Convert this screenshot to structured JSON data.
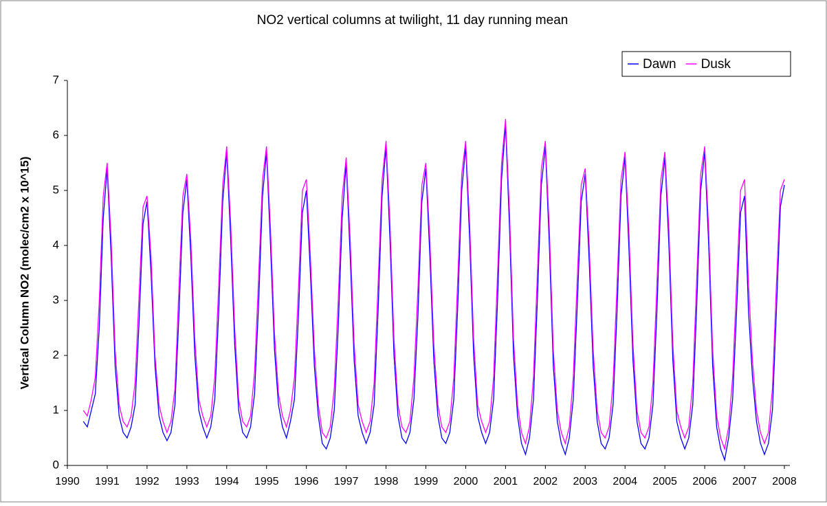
{
  "chart_data": {
    "type": "line",
    "title": "NO2 vertical columns at twilight, 11 day running mean",
    "y_label": "Vertical Column NO2 (molec/cm2 x 10^15)",
    "legend": "top-right",
    "x": [
      1990.4,
      1990.5,
      1990.6,
      1990.7,
      1990.8,
      1990.9,
      1991.0,
      1991.1,
      1991.2,
      1991.3,
      1991.4,
      1991.5,
      1991.6,
      1991.7,
      1991.8,
      1991.9,
      1992.0,
      1992.1,
      1992.2,
      1992.3,
      1992.4,
      1992.5,
      1992.6,
      1992.7,
      1992.8,
      1992.9,
      1993.0,
      1993.1,
      1993.2,
      1993.3,
      1993.4,
      1993.5,
      1993.6,
      1993.7,
      1993.8,
      1993.9,
      1994.0,
      1994.1,
      1994.2,
      1994.3,
      1994.4,
      1994.5,
      1994.6,
      1994.7,
      1994.8,
      1994.9,
      1995.0,
      1995.1,
      1995.2,
      1995.3,
      1995.4,
      1995.5,
      1995.6,
      1995.7,
      1995.8,
      1995.9,
      1996.0,
      1996.1,
      1996.2,
      1996.3,
      1996.4,
      1996.5,
      1996.6,
      1996.7,
      1996.8,
      1996.9,
      1997.0,
      1997.1,
      1997.2,
      1997.3,
      1997.4,
      1997.5,
      1997.6,
      1997.7,
      1997.8,
      1997.9,
      1998.0,
      1998.1,
      1998.2,
      1998.3,
      1998.4,
      1998.5,
      1998.6,
      1998.7,
      1998.8,
      1998.9,
      1999.0,
      1999.1,
      1999.2,
      1999.3,
      1999.4,
      1999.5,
      1999.6,
      1999.7,
      1999.8,
      1999.9,
      2000.0,
      2000.1,
      2000.2,
      2000.3,
      2000.4,
      2000.5,
      2000.6,
      2000.7,
      2000.8,
      2000.9,
      2001.0,
      2001.1,
      2001.2,
      2001.3,
      2001.4,
      2001.5,
      2001.6,
      2001.7,
      2001.8,
      2001.9,
      2002.0,
      2002.1,
      2002.2,
      2002.3,
      2002.4,
      2002.5,
      2002.6,
      2002.7,
      2002.8,
      2002.9,
      2003.0,
      2003.1,
      2003.2,
      2003.3,
      2003.4,
      2003.5,
      2003.6,
      2003.7,
      2003.8,
      2003.9,
      2004.0,
      2004.1,
      2004.2,
      2004.3,
      2004.4,
      2004.5,
      2004.6,
      2004.7,
      2004.8,
      2004.9,
      2005.0,
      2005.1,
      2005.2,
      2005.3,
      2005.4,
      2005.5,
      2005.6,
      2005.7,
      2005.8,
      2005.9,
      2006.0,
      2006.1,
      2006.2,
      2006.3,
      2006.4,
      2006.5,
      2006.6,
      2006.7,
      2006.8,
      2006.9,
      2007.0,
      2007.1,
      2007.2,
      2007.3,
      2007.4,
      2007.5,
      2007.6,
      2007.7,
      2007.8,
      2007.9,
      2008.0
    ],
    "series": [
      {
        "name": "Dawn",
        "color": "#0000ff",
        "values": [
          0.8,
          0.7,
          1.0,
          1.3,
          2.5,
          4.5,
          5.4,
          3.8,
          1.8,
          0.9,
          0.6,
          0.5,
          0.7,
          1.1,
          2.6,
          4.4,
          4.8,
          3.5,
          1.8,
          0.9,
          0.6,
          0.45,
          0.6,
          1.1,
          2.7,
          4.6,
          5.2,
          3.8,
          2.0,
          1.0,
          0.7,
          0.5,
          0.7,
          1.2,
          2.8,
          4.8,
          5.7,
          4.1,
          2.2,
          1.0,
          0.6,
          0.5,
          0.7,
          1.3,
          2.9,
          4.9,
          5.7,
          4.0,
          2.1,
          1.1,
          0.7,
          0.5,
          0.8,
          1.2,
          2.7,
          4.6,
          5.0,
          3.5,
          1.8,
          0.9,
          0.4,
          0.3,
          0.5,
          1.0,
          2.5,
          4.5,
          5.5,
          3.8,
          1.9,
          0.9,
          0.6,
          0.4,
          0.6,
          1.1,
          2.8,
          4.9,
          5.8,
          4.1,
          2.0,
          0.9,
          0.5,
          0.4,
          0.6,
          1.2,
          2.7,
          4.8,
          5.4,
          3.8,
          1.9,
          0.9,
          0.5,
          0.4,
          0.6,
          1.2,
          2.9,
          5.0,
          5.8,
          4.1,
          2.0,
          0.9,
          0.6,
          0.4,
          0.6,
          1.2,
          3.0,
          5.2,
          6.2,
          4.3,
          2.0,
          0.9,
          0.4,
          0.2,
          0.5,
          1.2,
          3.0,
          5.1,
          5.8,
          4.0,
          1.8,
          0.8,
          0.4,
          0.2,
          0.5,
          1.2,
          2.9,
          4.8,
          5.3,
          3.7,
          1.8,
          0.8,
          0.4,
          0.3,
          0.5,
          1.1,
          2.8,
          4.9,
          5.6,
          3.9,
          1.9,
          0.8,
          0.4,
          0.3,
          0.5,
          1.1,
          2.8,
          4.9,
          5.6,
          4.0,
          1.9,
          0.8,
          0.5,
          0.3,
          0.5,
          1.1,
          2.9,
          5.0,
          5.7,
          4.0,
          1.8,
          0.7,
          0.3,
          0.1,
          0.5,
          1.2,
          2.8,
          4.6,
          4.9,
          2.8,
          1.6,
          0.8,
          0.4,
          0.2,
          0.4,
          1.0,
          2.8,
          4.7,
          5.1
        ]
      },
      {
        "name": "Dusk",
        "color": "#ff00ff",
        "values": [
          1.0,
          0.9,
          1.2,
          1.6,
          3.0,
          4.9,
          5.5,
          4.1,
          2.1,
          1.1,
          0.8,
          0.7,
          0.9,
          1.5,
          3.1,
          4.7,
          4.9,
          3.8,
          2.0,
          1.1,
          0.8,
          0.6,
          0.8,
          1.4,
          3.2,
          4.9,
          5.3,
          4.1,
          2.3,
          1.2,
          0.9,
          0.7,
          0.9,
          1.6,
          3.3,
          5.1,
          5.8,
          4.4,
          2.5,
          1.2,
          0.8,
          0.7,
          0.9,
          1.7,
          3.4,
          5.2,
          5.8,
          4.3,
          2.4,
          1.3,
          0.9,
          0.7,
          1.0,
          1.6,
          3.2,
          5.0,
          5.2,
          3.8,
          2.1,
          1.1,
          0.6,
          0.5,
          0.7,
          1.4,
          3.0,
          4.9,
          5.6,
          4.1,
          2.2,
          1.1,
          0.8,
          0.6,
          0.8,
          1.5,
          3.3,
          5.2,
          5.9,
          4.4,
          2.3,
          1.1,
          0.7,
          0.6,
          0.8,
          1.6,
          3.2,
          5.1,
          5.5,
          4.1,
          2.2,
          1.1,
          0.7,
          0.6,
          0.8,
          1.6,
          3.4,
          5.3,
          5.9,
          4.4,
          2.3,
          1.1,
          0.8,
          0.6,
          0.8,
          1.6,
          3.5,
          5.5,
          6.3,
          4.6,
          2.3,
          1.1,
          0.6,
          0.4,
          0.7,
          1.6,
          3.5,
          5.4,
          5.9,
          4.3,
          2.1,
          1.0,
          0.6,
          0.4,
          0.7,
          1.6,
          3.4,
          5.1,
          5.4,
          4.0,
          2.1,
          1.0,
          0.6,
          0.5,
          0.7,
          1.5,
          3.3,
          5.2,
          5.7,
          4.2,
          2.2,
          1.0,
          0.6,
          0.5,
          0.7,
          1.5,
          3.3,
          5.2,
          5.7,
          4.3,
          2.2,
          1.0,
          0.7,
          0.5,
          0.7,
          1.5,
          3.4,
          5.3,
          5.8,
          4.3,
          2.1,
          0.9,
          0.5,
          0.3,
          0.7,
          1.6,
          3.3,
          5.0,
          5.2,
          3.3,
          1.9,
          1.0,
          0.6,
          0.4,
          0.6,
          1.4,
          3.3,
          5.0,
          5.2
        ]
      }
    ],
    "xlim": [
      1990,
      2008
    ],
    "xticks": [
      1990,
      1991,
      1992,
      1993,
      1994,
      1995,
      1996,
      1997,
      1998,
      1999,
      2000,
      2001,
      2002,
      2003,
      2004,
      2005,
      2006,
      2007,
      2008
    ],
    "ylim": [
      0,
      7
    ],
    "yticks": [
      0,
      1,
      2,
      3,
      4,
      5,
      6,
      7
    ],
    "grid": false
  }
}
